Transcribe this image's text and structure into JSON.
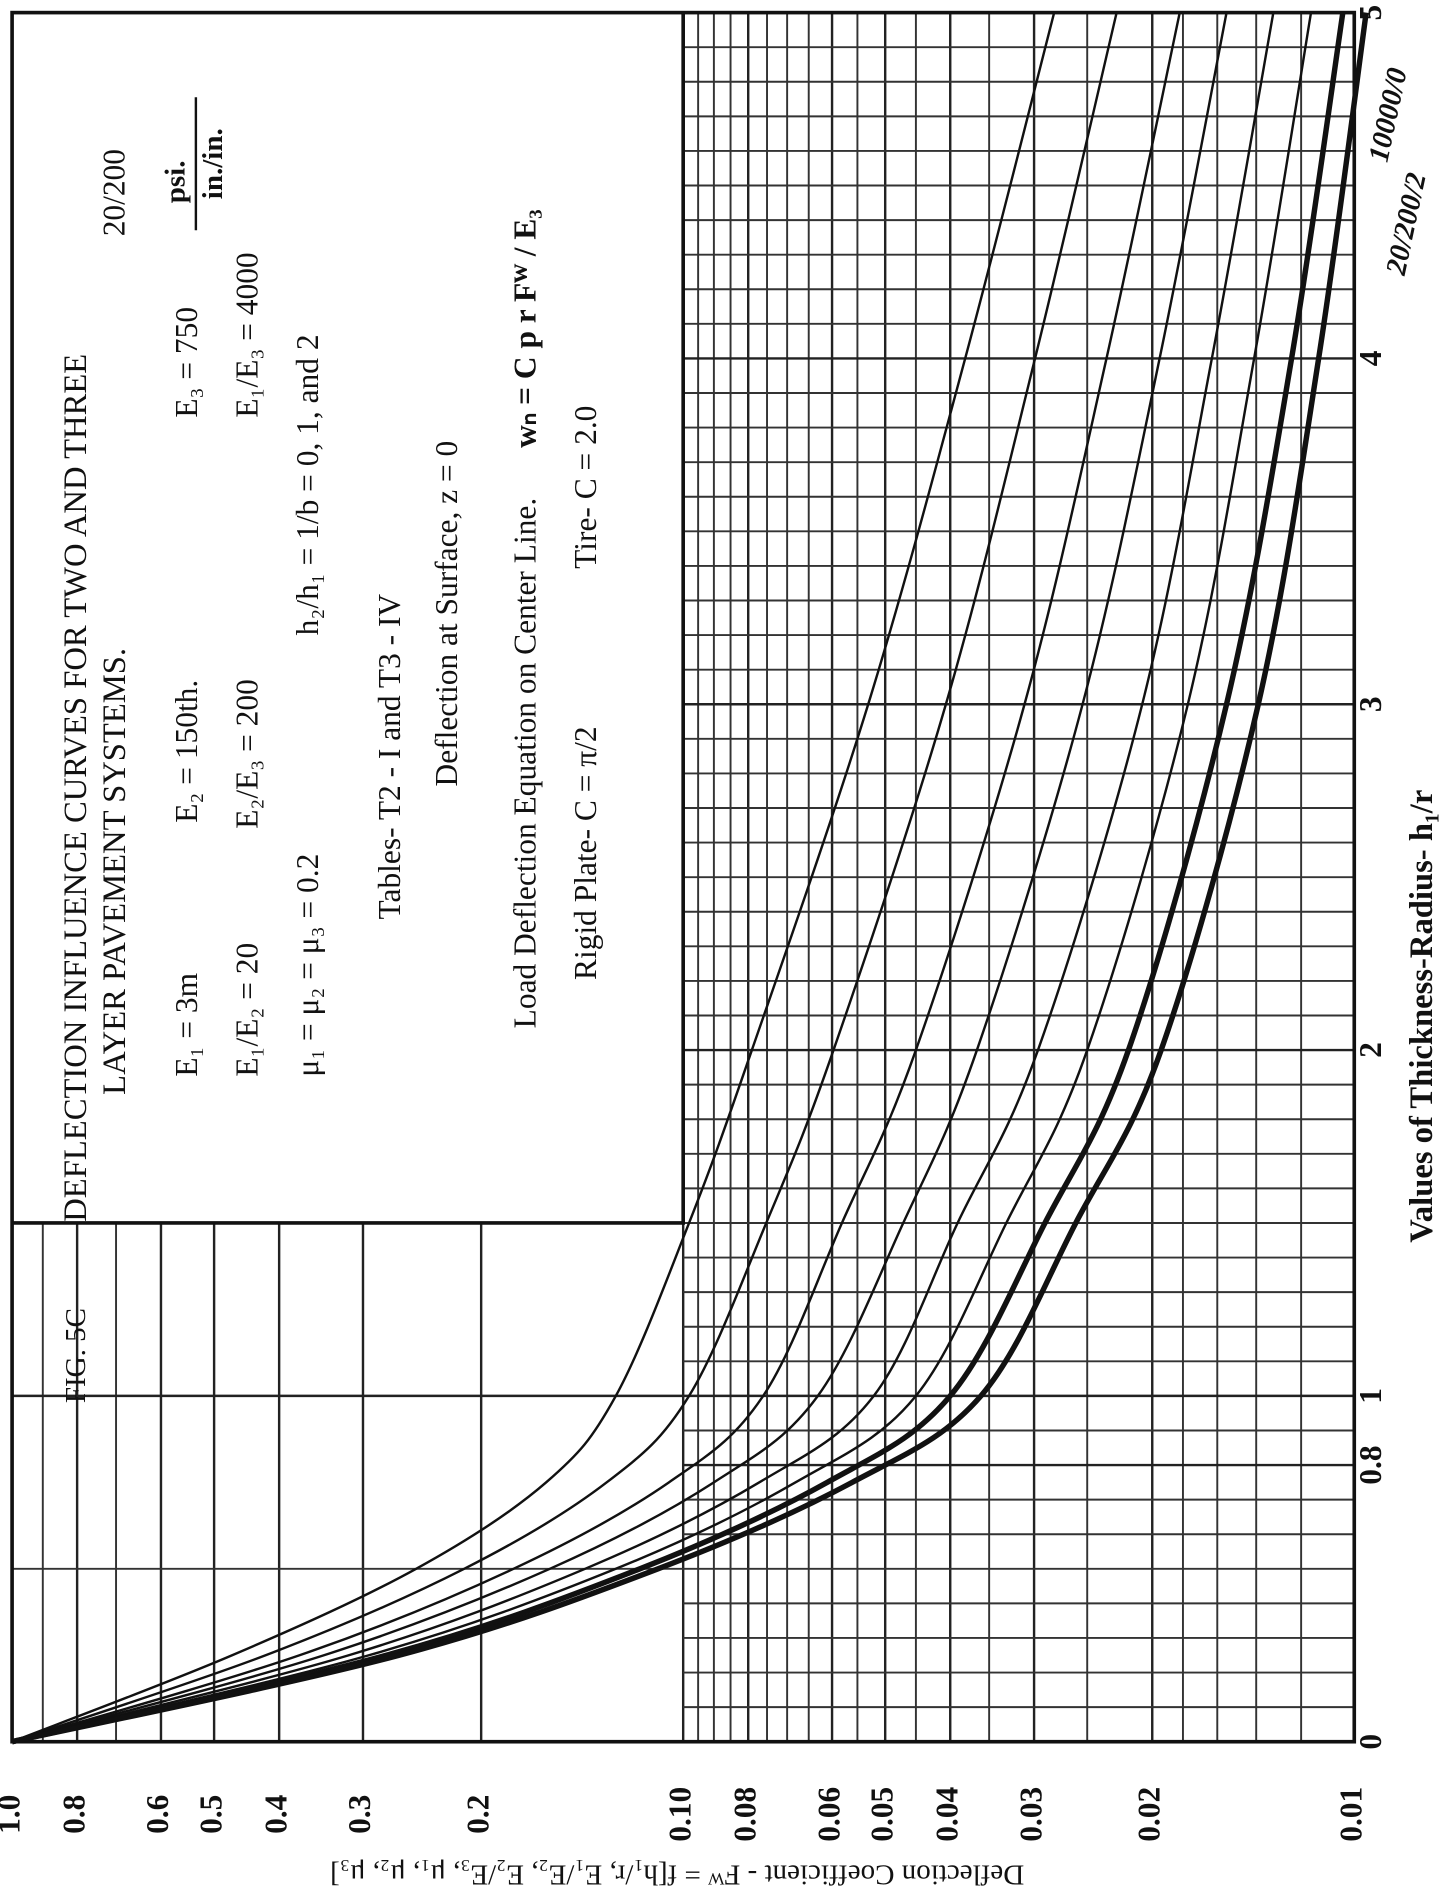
{
  "chart_data": {
    "type": "line",
    "title_lines": [
      "FIG. 5C",
      "DEFLECTION INFLUENCE CURVES FOR TWO AND THREE",
      "LAYER PAVEMENT SYSTEMS.",
      "20/200"
    ],
    "parameters": [
      {
        "text": "E₁ = 3m",
        "row": 0
      },
      {
        "text": "E₂ = 150th.",
        "row": 0
      },
      {
        "text": "E₃ = 750",
        "row": 0
      },
      {
        "text": "E₁/E₂ = 20",
        "row": 1
      },
      {
        "text": "E₂/E₃ = 200",
        "row": 1
      },
      {
        "text": "E₁/E₃ = 4000",
        "row": 1
      },
      {
        "text": "μ₁ = μ₂ = μ₃ = 0.2",
        "row": 2
      },
      {
        "text": "h₂/h₁ = 1/b = 0, 1, and 2",
        "row": 2
      }
    ],
    "units": {
      "numerator": "psi.",
      "denominator": "in./in."
    },
    "notes": [
      "Tables-   T2 - I  and  T3 - IV",
      "Deflection at Surface,  z = 0",
      "Load Deflection Equation on Center Line.",
      "wₙ = C p r Fᵂ / E₃",
      "Rigid Plate-  C = π/2",
      "Tire-  C = 2.0"
    ],
    "x_label": "Values of Thickness-Radius-  h₁/r",
    "y_label": "Deflection Coefficient - Fᵂ  =  f[h₁/r, E₁/E₂, E₂/E₃, μ₁, μ₂, μ₃]",
    "log_y": true,
    "xlim": [
      0,
      5
    ],
    "ylim": [
      1,
      0.01
    ],
    "xticks": [
      0,
      0.8,
      1,
      2,
      3,
      4,
      5
    ],
    "yticks": [
      {
        "value": 1,
        "label": "1.0"
      },
      0.8,
      0.6,
      0.5,
      0.4,
      0.3,
      0.2,
      {
        "value": 0.1,
        "label": "0.10"
      },
      0.08,
      0.06,
      0.05,
      0.04,
      0.03,
      0.02,
      0.01
    ],
    "xminor": [
      0.1,
      0.2,
      0.3,
      0.4,
      0.5,
      0.6,
      0.7,
      0.9,
      1.1,
      1.2,
      1.3,
      1.4,
      1.5,
      1.6,
      1.7,
      1.8,
      1.9,
      2.1,
      2.2,
      2.3,
      2.4,
      2.5,
      2.6,
      2.7,
      2.8,
      2.9,
      3.1,
      3.2,
      3.3,
      3.4,
      3.5,
      3.6,
      3.7,
      3.8,
      3.9,
      4.1,
      4.2,
      4.3,
      4.4,
      4.5,
      4.6,
      4.7,
      4.8,
      4.9
    ],
    "yminor": [
      0.9,
      0.7,
      0.095,
      0.09,
      0.085,
      0.075,
      0.07,
      0.065,
      0.055,
      0.045,
      0.035,
      0.025,
      0.018,
      0.016,
      0.014,
      0.012
    ],
    "grid": true,
    "x": [
      0,
      0.25,
      0.5,
      0.75,
      1,
      1.5,
      2,
      3,
      4,
      5
    ],
    "series": [
      {
        "color": "#111111",
        "values": [
          1,
          0.47,
          0.25,
          0.16,
          0.126,
          0.098,
          0.079,
          0.053,
          0.038,
          0.028
        ]
      },
      {
        "color": "#111111",
        "values": [
          1,
          0.419,
          0.212,
          0.13,
          0.098,
          0.0752,
          0.0597,
          0.0406,
          0.0299,
          0.0226
        ]
      },
      {
        "color": "#111111",
        "values": [
          1,
          0.373,
          0.179,
          0.105,
          0.076,
          0.058,
          0.045,
          0.031,
          0.0234,
          0.0182
        ]
      },
      {
        "color": "#111111",
        "values": [
          1,
          0.343,
          0.158,
          0.09,
          0.063,
          0.047,
          0.0365,
          0.0254,
          0.0195,
          0.0155
        ]
      },
      {
        "color": "#111111",
        "values": [
          1,
          0.315,
          0.14,
          0.077,
          0.052,
          0.039,
          0.0296,
          0.0207,
          0.0163,
          0.0132
        ]
      },
      {
        "color": "#111111",
        "values": [
          1,
          0.294,
          0.126,
          0.068,
          0.045,
          0.033,
          0.025,
          0.0177,
          0.0141,
          0.0116
        ]
      },
      {
        "name": "20/200/2",
        "color": "#111111",
        "thick": true,
        "values": [
          1,
          0.277,
          0.116,
          0.061,
          0.04,
          0.0289,
          0.0217,
          0.0155,
          0.0124,
          0.0104
        ]
      },
      {
        "name": "10000/0",
        "color": "#111111",
        "thick": true,
        "values": [
          1,
          0.265,
          0.109,
          0.056,
          0.036,
          0.026,
          0.0194,
          0.0139,
          0.0113,
          0.0096
        ]
      }
    ]
  }
}
